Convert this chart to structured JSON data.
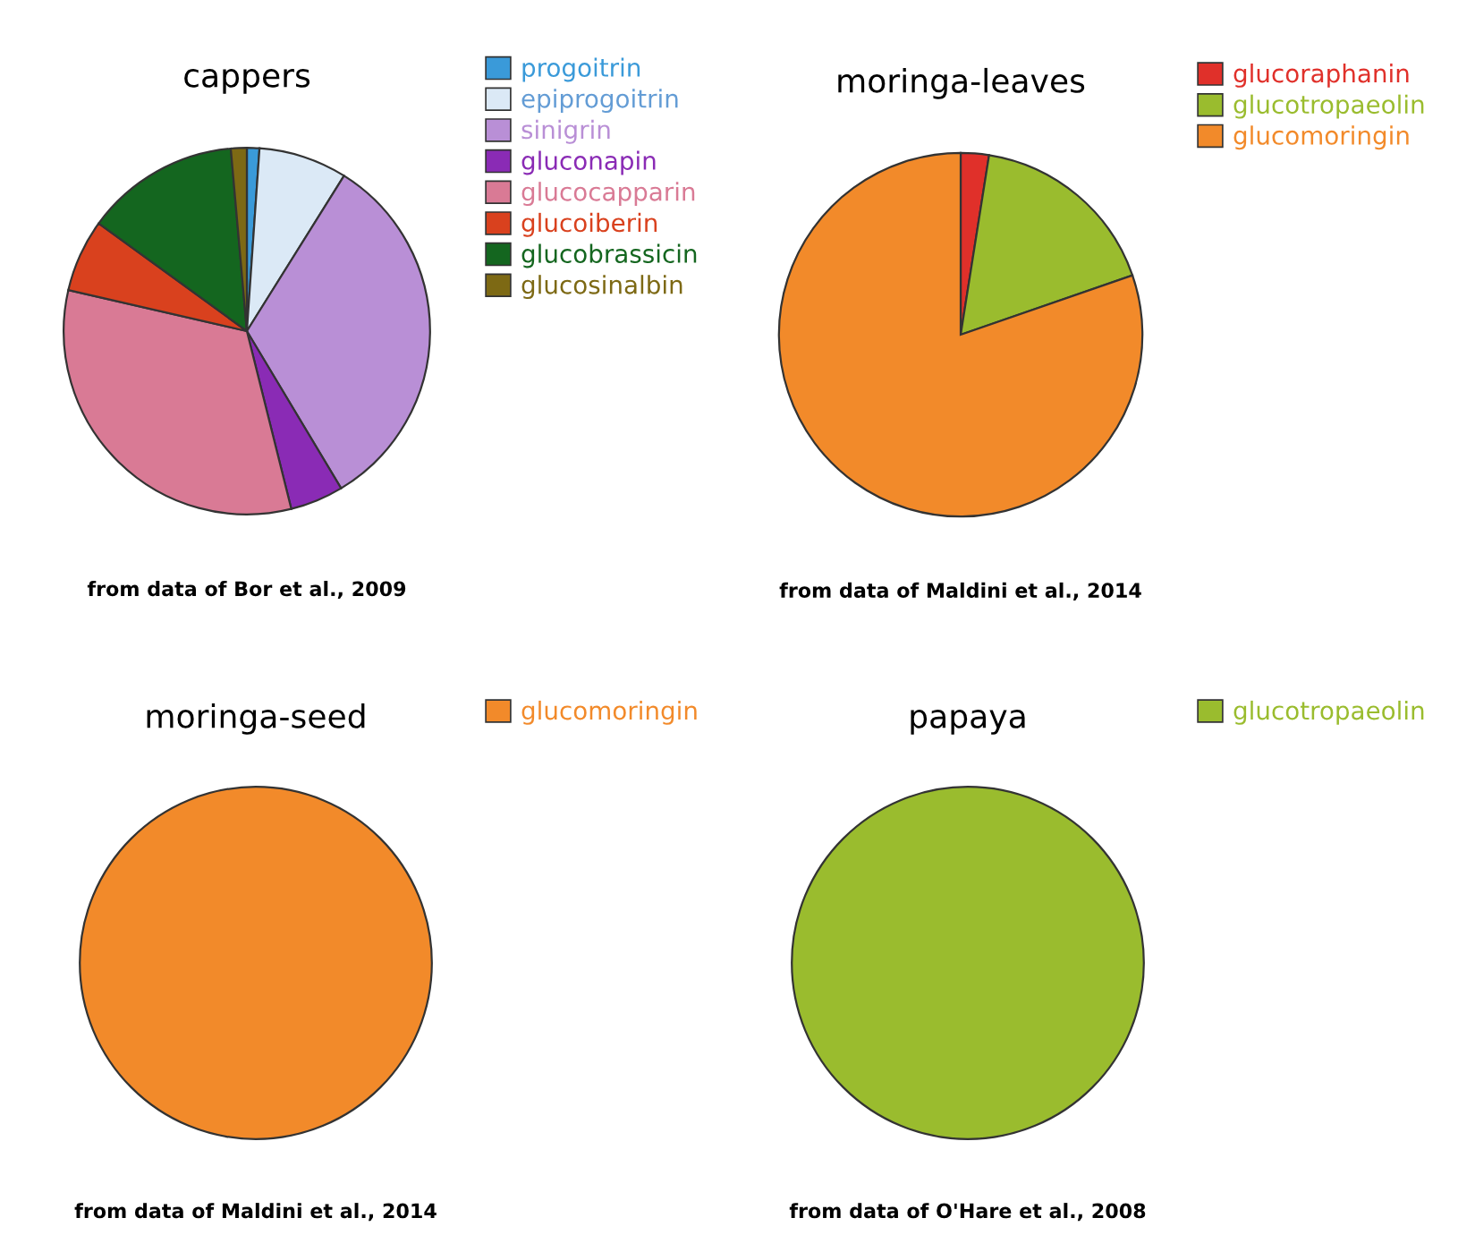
{
  "chart_data": [
    {
      "type": "pie",
      "title": "cappers",
      "categories": [
        "progoitrin",
        "epiprogoitrin",
        "sinigrin",
        "gluconapin",
        "glucocapparin",
        "glucoiberin",
        "glucobrassicin",
        "glucosinalbin"
      ],
      "values": [
        1.1,
        7.8,
        32.5,
        4.7,
        32.5,
        6.4,
        13.6,
        1.4
      ],
      "colors": [
        "#3a9ad9",
        "#dbe9f6",
        "#b98fd6",
        "#8a2bb5",
        "#d97a95",
        "#d9411e",
        "#14661f",
        "#7d6914"
      ],
      "legend": "top right",
      "annotations": [
        "from data of Bor et al., 2009"
      ]
    },
    {
      "type": "pie",
      "title": "moringa-leaves",
      "categories": [
        "glucoraphanin",
        "glucotropaeolin",
        "glucomoringin"
      ],
      "values": [
        2.5,
        17.2,
        80.3
      ],
      "colors": [
        "#e0302a",
        "#9abc2e",
        "#f28a2a"
      ],
      "legend": "top right",
      "annotations": [
        "from data of Maldini et al., 2014"
      ]
    },
    {
      "type": "pie",
      "title": "moringa-seed",
      "categories": [
        "glucomoringin"
      ],
      "values": [
        100
      ],
      "colors": [
        "#f28a2a"
      ],
      "legend": "top right",
      "annotations": [
        "from data of Maldini et al., 2014"
      ]
    },
    {
      "type": "pie",
      "title": "papaya",
      "categories": [
        "glucotropaeolin"
      ],
      "values": [
        100
      ],
      "colors": [
        "#9abc2e"
      ],
      "legend": "top right",
      "annotations": [
        "from data of O'Hare et al., 2008"
      ]
    }
  ]
}
